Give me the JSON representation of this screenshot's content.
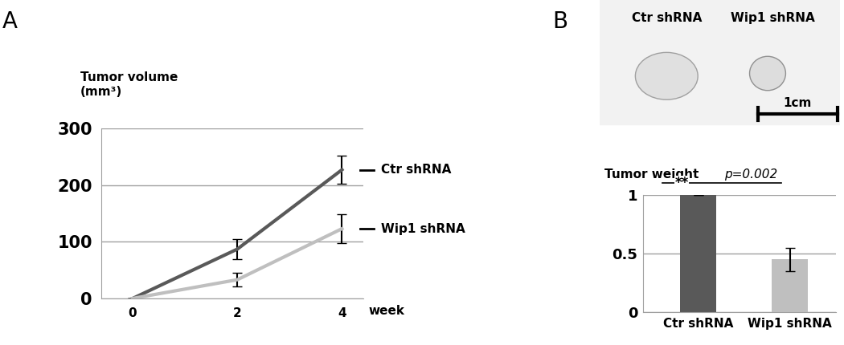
{
  "chart_data": [
    {
      "type": "line",
      "title": "A",
      "y_label": "Tumor volume\n(mm³)",
      "x_label": "week",
      "x": [
        0,
        2,
        4
      ],
      "xlim": [
        -0.6,
        4.4
      ],
      "xticks": [
        0,
        2,
        4
      ],
      "ylim": [
        0,
        300
      ],
      "yticks": [
        0,
        100,
        200,
        300
      ],
      "grid": true,
      "series": [
        {
          "name": "Ctr shRNA",
          "color": "#595959",
          "values": [
            0,
            87,
            227
          ],
          "errors": [
            0,
            18,
            25
          ]
        },
        {
          "name": "Wip1 shRNA",
          "color": "#bfbfbf",
          "values": [
            0,
            33,
            123
          ],
          "errors": [
            0,
            12,
            25
          ]
        }
      ]
    },
    {
      "type": "bar",
      "title": "B",
      "y_label": "Tumor weight",
      "categories": [
        "Ctr shRNA",
        "Wip1 shRNA"
      ],
      "values": [
        1,
        0.45
      ],
      "errors": [
        0,
        0.1
      ],
      "colors": [
        "#595959",
        "#bfbfbf"
      ],
      "ylim": [
        0,
        1
      ],
      "yticks": [
        0,
        0.5,
        1
      ],
      "grid": true,
      "annotations": [
        "**",
        "p=0.002"
      ],
      "photo": {
        "labels": [
          "Ctr shRNA",
          "Wip1 shRNA"
        ],
        "scale_bar": "1cm"
      }
    }
  ]
}
